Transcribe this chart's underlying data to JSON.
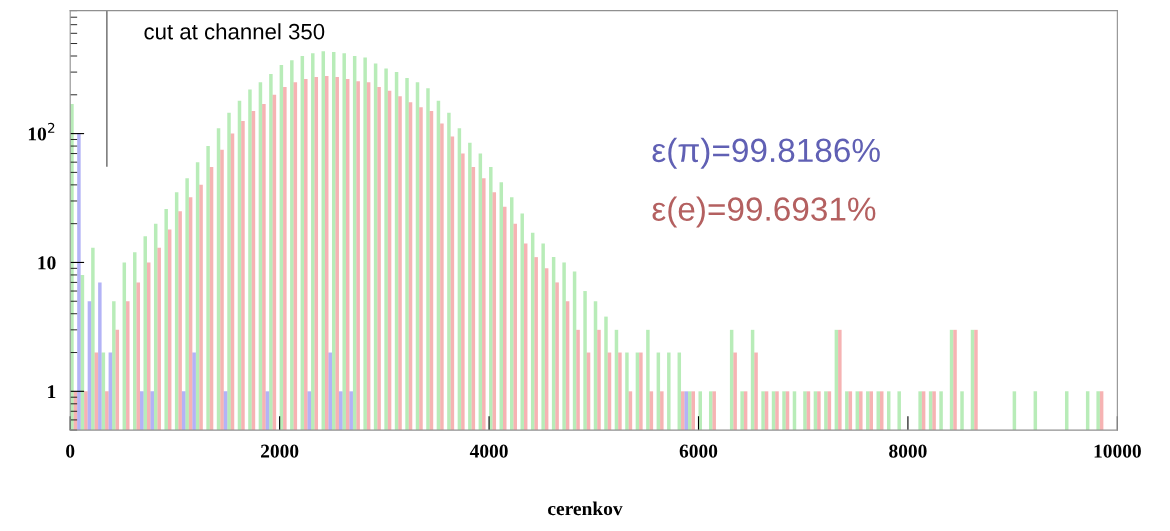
{
  "chart_data": {
    "type": "histogram",
    "xlabel": "cerenkov",
    "log": "y",
    "bins": [
      0,
      100,
      200,
      300,
      400,
      500,
      600,
      700,
      800,
      900,
      1000,
      1100,
      1200,
      1300,
      1400,
      1500,
      1600,
      1700,
      1800,
      1900,
      2000,
      2100,
      2200,
      2300,
      2400,
      2500,
      2600,
      2700,
      2800,
      2900,
      3000,
      3100,
      3200,
      3300,
      3400,
      3500,
      3600,
      3700,
      3800,
      3900,
      4000,
      4100,
      4200,
      4300,
      4400,
      4500,
      4600,
      4700,
      4800,
      4900,
      5000,
      5100,
      5200,
      5300,
      5400,
      5500,
      5600,
      5700,
      5800,
      5900,
      6000,
      6100,
      6200,
      6300,
      6400,
      6500,
      6600,
      6700,
      6800,
      6900,
      7000,
      7100,
      7200,
      7300,
      7400,
      7500,
      7600,
      7700,
      7800,
      7900,
      8000,
      8100,
      8200,
      8300,
      8400,
      8500,
      8600,
      8700,
      8800,
      8900,
      9000,
      9100,
      9200,
      9300,
      9400,
      9500,
      9600,
      9700,
      9800,
      9900,
      10000
    ],
    "series": [
      {
        "color": "#88e088",
        "values": [
          170,
          8,
          13,
          2,
          5,
          10,
          12,
          16,
          20,
          26,
          35,
          45,
          60,
          80,
          110,
          145,
          180,
          220,
          250,
          290,
          340,
          370,
          400,
          420,
          435,
          430,
          420,
          400,
          390,
          350,
          320,
          300,
          270,
          250,
          225,
          180,
          145,
          110,
          85,
          70,
          55,
          42,
          32,
          24,
          17,
          14,
          11,
          10,
          8.5,
          6,
          5,
          3.8,
          3,
          2,
          2,
          3,
          2,
          2,
          2,
          1,
          1,
          1,
          null,
          3,
          1,
          3,
          1,
          1,
          1,
          1,
          1,
          1,
          1,
          3,
          1,
          1,
          1,
          1,
          1,
          1,
          null,
          1,
          1,
          1,
          3,
          1,
          3,
          null,
          null,
          null,
          1,
          null,
          1,
          null,
          null,
          1,
          null,
          1,
          1,
          null
        ]
      },
      {
        "color": "#f08080",
        "values": [
          1,
          1,
          2,
          1,
          3,
          5,
          7,
          10,
          13,
          18,
          25,
          32,
          40,
          55,
          75,
          100,
          125,
          150,
          170,
          200,
          230,
          250,
          265,
          275,
          280,
          275,
          265,
          255,
          250,
          230,
          215,
          195,
          175,
          160,
          150,
          120,
          95,
          70,
          55,
          45,
          35,
          27,
          20,
          14,
          11,
          9,
          7,
          5,
          3,
          2,
          3,
          2,
          2,
          1,
          2,
          1,
          1,
          null,
          1,
          1,
          null,
          1,
          null,
          2,
          1,
          2,
          1,
          1,
          1,
          null,
          1,
          1,
          1,
          3,
          1,
          1,
          1,
          1,
          null,
          null,
          null,
          1,
          1,
          null,
          3,
          null,
          3,
          null,
          null,
          null,
          null,
          null,
          null,
          null,
          null,
          null,
          null,
          null,
          1,
          null
        ]
      },
      {
        "color": "#8080f0",
        "values": [
          100,
          5,
          7,
          2,
          null,
          null,
          1,
          1,
          null,
          null,
          1,
          2,
          null,
          null,
          1,
          null,
          null,
          null,
          1,
          null,
          null,
          null,
          1,
          null,
          2,
          1,
          1,
          null,
          null,
          null,
          null,
          null,
          null,
          null,
          null,
          null,
          null,
          null,
          null,
          null,
          null,
          null,
          null,
          null,
          null,
          null,
          null,
          null,
          null,
          null,
          null,
          null,
          null,
          null,
          null,
          null,
          null,
          null,
          1,
          null,
          null,
          null,
          null,
          null,
          null,
          null,
          null,
          null,
          null,
          null,
          null,
          null,
          null,
          null,
          null,
          null,
          null,
          null,
          null,
          null,
          null,
          null,
          null,
          null,
          null,
          null,
          null,
          null,
          null,
          null,
          null,
          null,
          null,
          null,
          null,
          null,
          null,
          null,
          null,
          null
        ]
      }
    ],
    "xlim": [
      0,
      10000
    ],
    "xticks": [
      0,
      2000,
      4000,
      6000,
      8000,
      10000
    ],
    "ylim": [
      0.5,
      900
    ],
    "yticks": [
      1,
      10,
      {
        "value": 100,
        "label": "10$^{2}$"
      }
    ],
    "ref_lines": [
      {
        "axis": "x",
        "value": 350,
        "label": "cut at channel 350",
        "color": "#808080"
      }
    ],
    "annotations": [
      "ε(π)=99.8186%",
      "ε(e)=99.6931%"
    ],
    "grid": false,
    "legend": false
  }
}
